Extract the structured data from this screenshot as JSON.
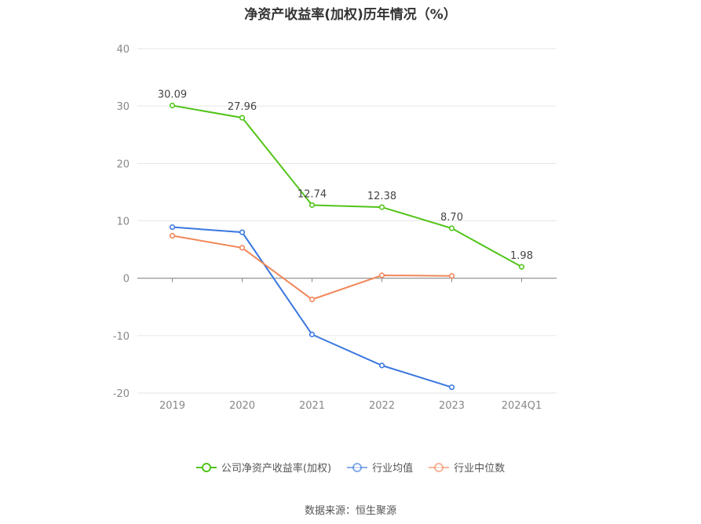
{
  "chart_data": {
    "type": "line",
    "title": "净资产收益率(加权)历年情况（%）",
    "categories": [
      "2019",
      "2020",
      "2021",
      "2022",
      "2023",
      "2024Q1"
    ],
    "ylim": [
      -20,
      40
    ],
    "yticks": [
      40,
      30,
      20,
      10,
      0,
      -10,
      -20
    ],
    "grid": true,
    "legend_position": "bottom",
    "series": [
      {
        "name": "公司净资产收益率(加权)",
        "color": "#52c41a",
        "values": [
          30.09,
          27.96,
          12.74,
          12.38,
          8.7,
          1.98
        ],
        "labels": [
          "30.09",
          "27.96",
          "12.74",
          "12.38",
          "8.70",
          "1.98"
        ]
      },
      {
        "name": "行业均值",
        "color": "#3a78e0",
        "values": [
          8.9,
          8.0,
          -9.8,
          -15.2,
          -19.0,
          null
        ]
      },
      {
        "name": "行业中位数",
        "color": "#f0875a",
        "values": [
          7.4,
          5.3,
          -3.7,
          0.5,
          0.4,
          null
        ]
      }
    ]
  },
  "source": "数据来源：恒生聚源"
}
